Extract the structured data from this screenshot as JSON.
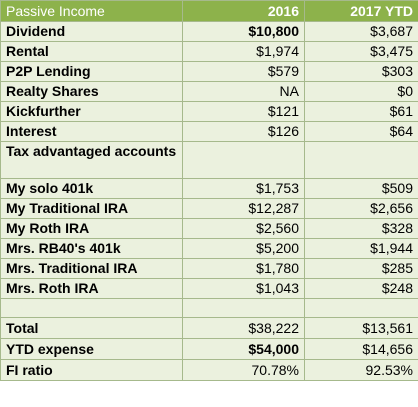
{
  "header": {
    "col_label": "Passive Income",
    "col_2016": "2016",
    "col_2017": "2017 YTD"
  },
  "rows": [
    {
      "label": "Dividend",
      "v2016": "$10,800",
      "v2017": "$3,687",
      "bold2016": true
    },
    {
      "label": "Rental",
      "v2016": "$1,974",
      "v2017": "$3,475"
    },
    {
      "label": "P2P Lending",
      "v2016": "$579",
      "v2017": "$303"
    },
    {
      "label": "Realty Shares",
      "v2016": "NA",
      "v2017": "$0"
    },
    {
      "label": "Kickfurther",
      "v2016": "$121",
      "v2017": "$61"
    },
    {
      "label": "Interest",
      "v2016": "$126",
      "v2017": "$64"
    },
    {
      "label": "Tax advantaged accounts",
      "v2016": "",
      "v2017": ""
    },
    {
      "label": "My solo 401k",
      "v2016": "$1,753",
      "v2017": "$509"
    },
    {
      "label": "My Traditional IRA",
      "v2016": "$12,287",
      "v2017": "$2,656"
    },
    {
      "label": "My Roth IRA",
      "v2016": "$2,560",
      "v2017": "$328"
    },
    {
      "label": "Mrs. RB40's 401k",
      "v2016": "$5,200",
      "v2017": "$1,944"
    },
    {
      "label": "Mrs. Traditional IRA",
      "v2016": "$1,780",
      "v2017": "$285"
    },
    {
      "label": "Mrs. Roth IRA",
      "v2016": "$1,043",
      "v2017": "$248"
    }
  ],
  "summary": [
    {
      "label": "Total",
      "v2016": "$38,222",
      "v2017": "$13,561"
    },
    {
      "label": "YTD expense",
      "v2016": "$54,000",
      "v2017": "$14,656",
      "bold2016": true
    },
    {
      "label": "FI ratio",
      "v2016": "70.78%",
      "v2017": "92.53%"
    }
  ]
}
